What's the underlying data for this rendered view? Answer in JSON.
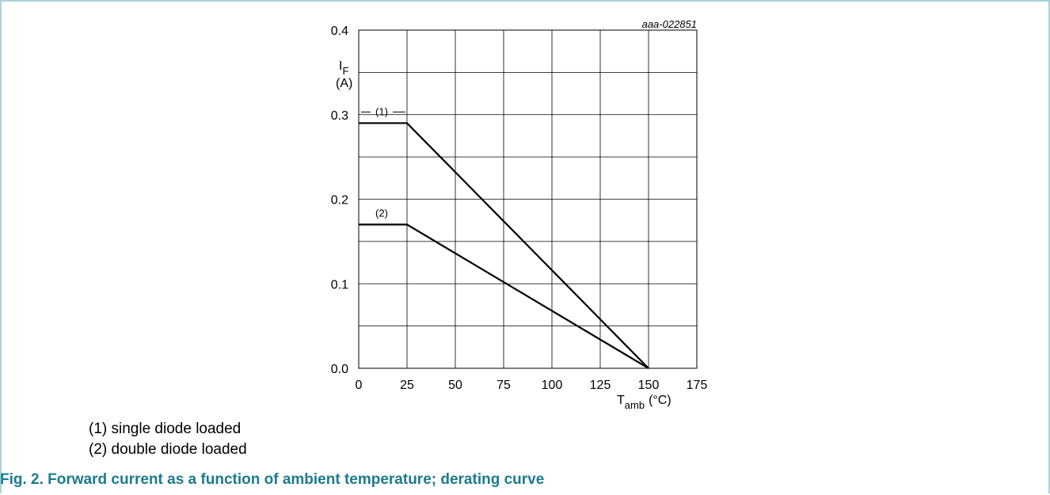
{
  "figure_id": "aaa-022851",
  "y_axis_label": {
    "symbol": "I",
    "subscript": "F",
    "unit": "(A)"
  },
  "x_axis_label": {
    "symbol": "T",
    "subscript": "amb",
    "unit": "(°C)"
  },
  "notes": [
    "(1) single diode loaded",
    "(2) double diode loaded"
  ],
  "caption": "Fig. 2. Forward current as a function of ambient temperature; derating curve",
  "colors": {
    "caption": "#1b7b8c",
    "frame": "#a8d4d8",
    "curve": "#000000"
  },
  "chart_data": {
    "type": "line",
    "xlim": [
      0,
      175
    ],
    "ylim": [
      0.0,
      0.4
    ],
    "x_ticks": [
      0,
      25,
      50,
      75,
      100,
      125,
      150,
      175
    ],
    "x_tick_labels": [
      "0",
      "25",
      "50",
      "75",
      "100",
      "125",
      "150",
      "175"
    ],
    "y_ticks": [
      0.0,
      0.1,
      0.2,
      0.3,
      0.4
    ],
    "y_tick_labels": [
      "0.0",
      "0.1",
      "0.2",
      "0.3",
      "0.4"
    ],
    "x_minor_step": 25,
    "y_minor_step": 0.05,
    "grid": true,
    "series": [
      {
        "name": "(1)",
        "x": [
          0,
          25,
          150
        ],
        "y": [
          0.29,
          0.29,
          0.0
        ]
      },
      {
        "name": "(2)",
        "x": [
          0,
          25,
          150
        ],
        "y": [
          0.17,
          0.17,
          0.0
        ]
      }
    ]
  }
}
